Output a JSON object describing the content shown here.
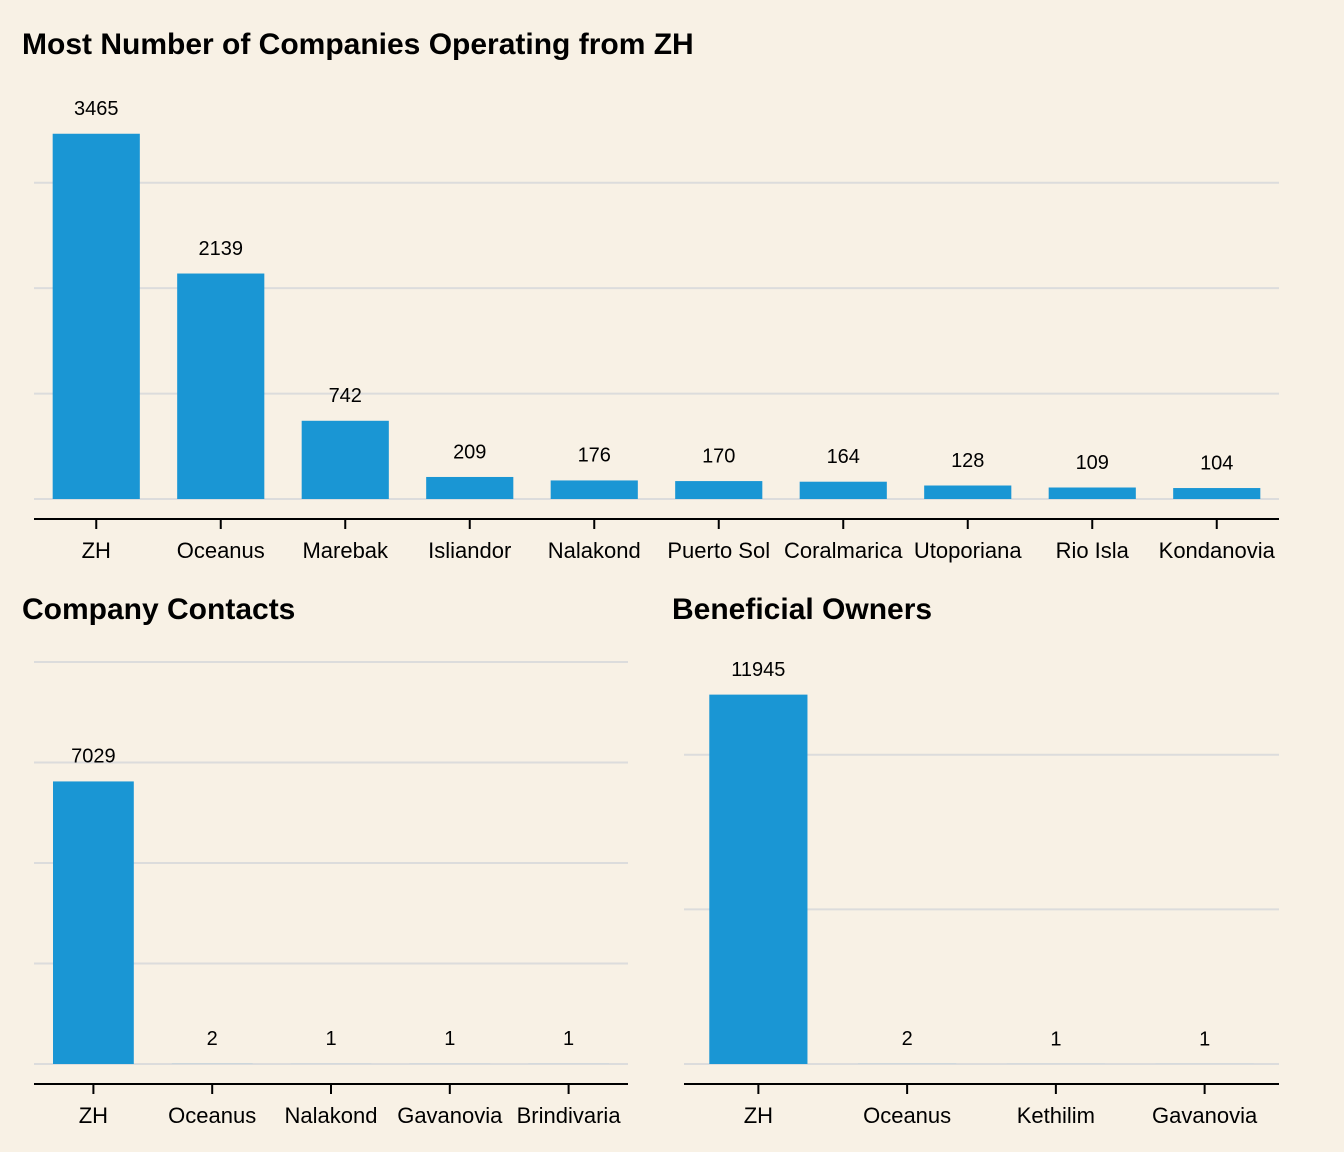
{
  "chart_data": [
    {
      "type": "bar",
      "title": "Most Number of Companies Operating from ZH",
      "categories": [
        "ZH",
        "Oceanus",
        "Marebak",
        "Isliandor",
        "Nalakond",
        "Puerto Sol",
        "Coralmarica",
        "Utoporiana",
        "Rio Isla",
        "Kondanovia"
      ],
      "values": [
        3465,
        2139,
        742,
        209,
        176,
        170,
        164,
        128,
        109,
        104
      ],
      "color": "#1a96d4",
      "ylim": [
        0,
        3880
      ],
      "yticks": [
        0,
        1000,
        2000,
        3000
      ],
      "grid": true,
      "show_tick_labels": false
    },
    {
      "type": "bar",
      "title": "Company Contacts",
      "categories": [
        "ZH",
        "Oceanus",
        "Nalakond",
        "Gavanovia",
        "Brindivaria"
      ],
      "values": [
        7029,
        2,
        1,
        1,
        1
      ],
      "color": "#1a96d4",
      "ylim": [
        0,
        10000
      ],
      "yticks": [
        0,
        2500,
        5000,
        7500,
        10000
      ],
      "grid": true,
      "show_tick_labels": false
    },
    {
      "type": "bar",
      "title": "Beneficial Owners",
      "categories": [
        "ZH",
        "Oceanus",
        "Kethilim",
        "Gavanovia"
      ],
      "values": [
        11945,
        2,
        1,
        1
      ],
      "color": "#1a96d4",
      "ylim": [
        0,
        13000
      ],
      "yticks": [
        0,
        5000,
        10000
      ],
      "grid": true,
      "show_tick_labels": false
    }
  ]
}
